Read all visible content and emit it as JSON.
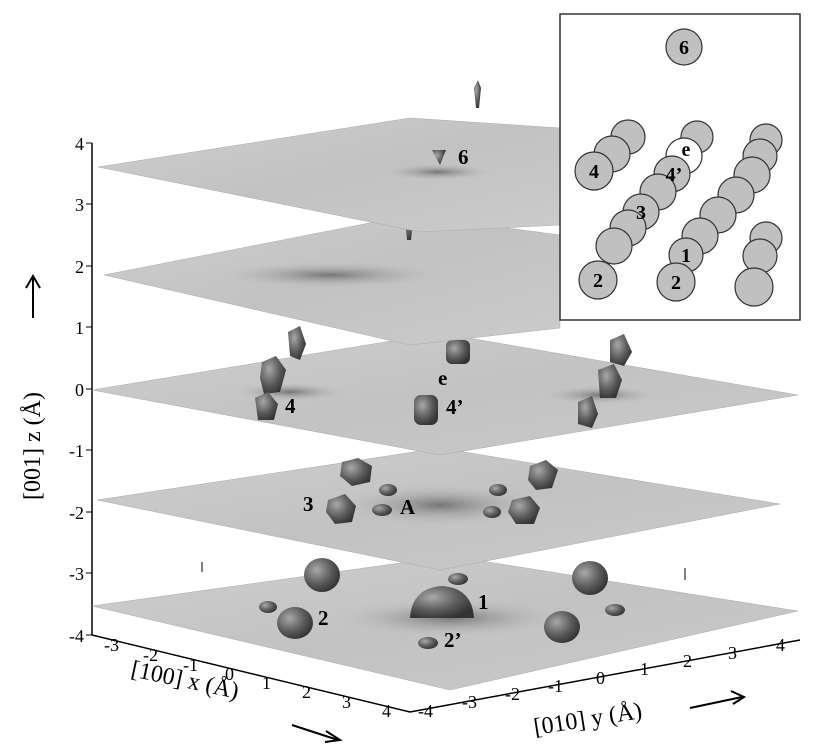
{
  "z_axis": {
    "label": "[001] z (Å)",
    "ticks": [
      "4",
      "3",
      "2",
      "1",
      "0",
      "-1",
      "-2",
      "-3",
      "-4"
    ]
  },
  "x_axis": {
    "label": "[100] x (Å)",
    "ticks": [
      "-3",
      "-2",
      "-1",
      "0",
      "1",
      "2",
      "3",
      "4"
    ]
  },
  "y_axis": {
    "label": "[010] y (Å)",
    "ticks": [
      "-4",
      "-3",
      "-2",
      "-1",
      "0",
      "1",
      "2",
      "3",
      "4"
    ]
  },
  "slice_levels_z": [
    3.5,
    2,
    0,
    -2,
    -3.5
  ],
  "site_labels": {
    "six": "6",
    "e": "e",
    "four": "4",
    "four_prime": "4’",
    "three": "3",
    "a": "A",
    "one": "1",
    "two": "2",
    "two_prime": "2’"
  },
  "inset": {
    "labels": {
      "six": "6",
      "four": "4",
      "e": "e",
      "four_prime": "4’",
      "three": "3",
      "one": "1",
      "two_left": "2",
      "two_right": "2"
    }
  },
  "colors": {
    "slice_fill": "#c8c8c8",
    "blob_fill": "#5a5a5a",
    "atom_fill": "#c0c0c0",
    "atom_stroke": "#333333"
  }
}
